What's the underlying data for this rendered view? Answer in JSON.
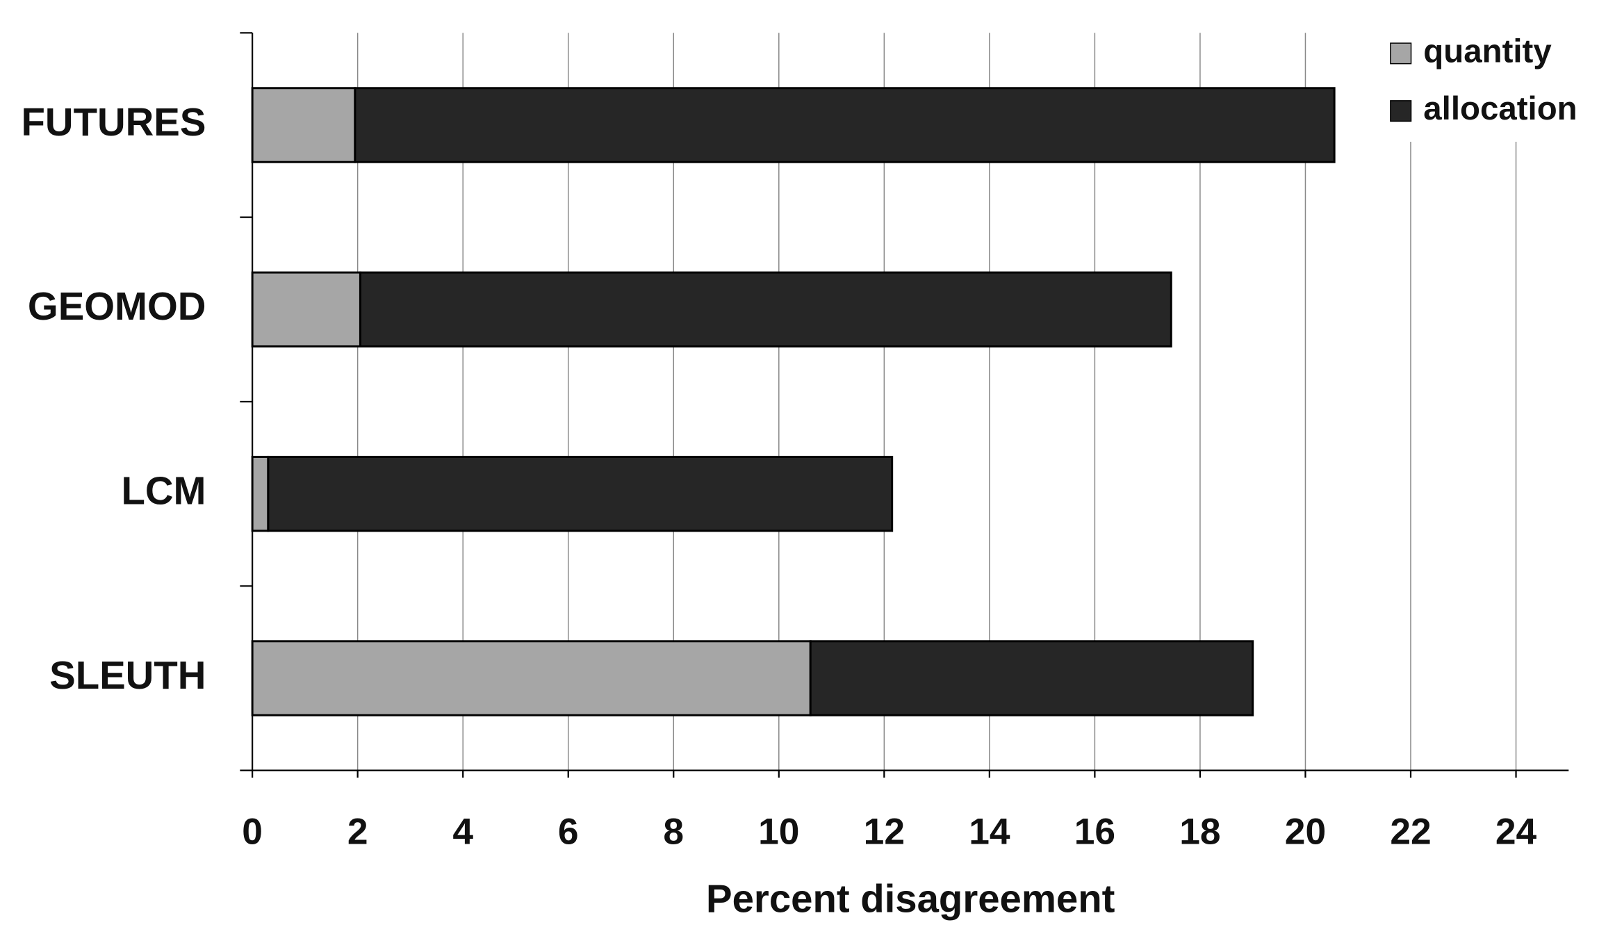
{
  "chart_data": {
    "type": "stacked-barh",
    "categories": [
      "FUTURES",
      "GEOMOD",
      "LCM",
      "SLEUTH"
    ],
    "series": [
      {
        "name": "quantity",
        "color": "#a6a6a6",
        "values": [
          1.95,
          2.05,
          0.3,
          10.6
        ]
      },
      {
        "name": "allocation",
        "color": "#262626",
        "values": [
          18.6,
          15.4,
          11.85,
          8.4
        ]
      }
    ],
    "xlabel": "Percent disagreement",
    "xlim": [
      0,
      25
    ],
    "xticks": [
      0,
      2,
      4,
      6,
      8,
      10,
      12,
      14,
      16,
      18,
      20,
      22,
      24
    ],
    "grid": true,
    "legend": "upper right"
  }
}
